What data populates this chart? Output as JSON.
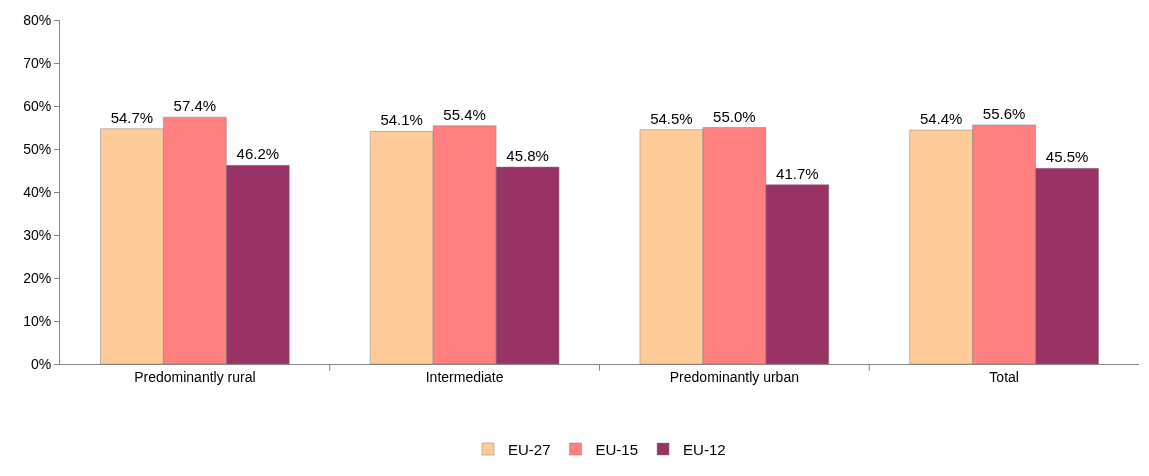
{
  "chart_data": {
    "type": "bar",
    "categories": [
      "Predominantly rural",
      "Intermediate",
      "Predominantly urban",
      "Total"
    ],
    "series": [
      {
        "name": "EU-27",
        "color": "#ffcc99",
        "values": [
          54.7,
          54.1,
          54.5,
          54.4
        ],
        "value_labels": [
          "54.7%",
          "54.1%",
          "54.5%",
          "54.4%"
        ]
      },
      {
        "name": "EU-15",
        "color": "#ff8080",
        "values": [
          57.4,
          55.4,
          55.0,
          55.6
        ],
        "value_labels": [
          "57.4%",
          "55.4%",
          "55.0%",
          "55.6%"
        ]
      },
      {
        "name": "EU-12",
        "color": "#993366",
        "values": [
          46.2,
          45.8,
          41.7,
          45.5
        ],
        "value_labels": [
          "46.2%",
          "45.8%",
          "41.7%",
          "45.5%"
        ]
      }
    ],
    "ylim": [
      0,
      80
    ],
    "yticks": [
      {
        "value": 0,
        "label": "0%"
      },
      {
        "value": 10,
        "label": "10%"
      },
      {
        "value": 20,
        "label": "20%"
      },
      {
        "value": 30,
        "label": "30%"
      },
      {
        "value": 40,
        "label": "40%"
      },
      {
        "value": 50,
        "label": "50%"
      },
      {
        "value": 60,
        "label": "60%"
      },
      {
        "value": 70,
        "label": "70%"
      },
      {
        "value": 80,
        "label": "80%"
      }
    ],
    "grid": false,
    "legend": "bottom"
  }
}
